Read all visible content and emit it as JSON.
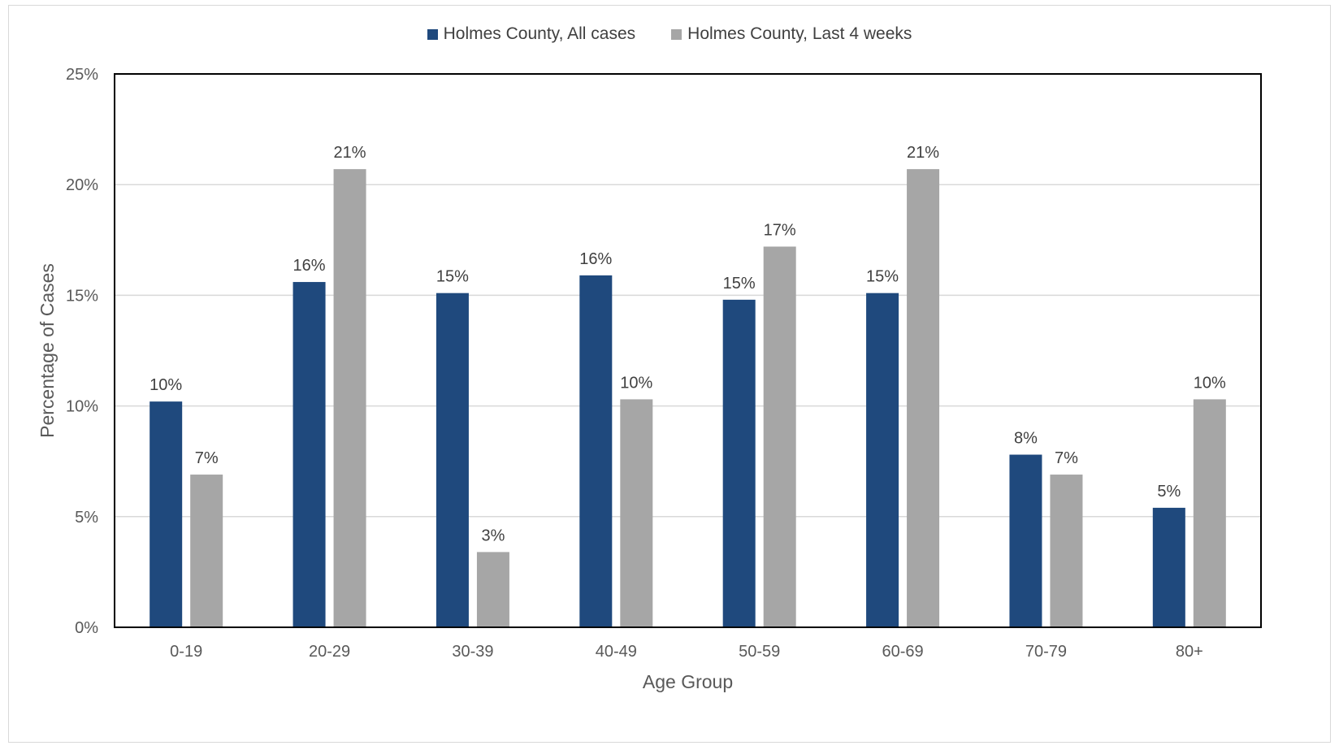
{
  "chart_data": {
    "type": "bar",
    "categories": [
      "0-19",
      "20-29",
      "30-39",
      "40-49",
      "50-59",
      "60-69",
      "70-79",
      "80+"
    ],
    "series": [
      {
        "name": "Holmes County, All cases",
        "color": "#1f497d",
        "values": [
          10.2,
          15.6,
          15.1,
          15.9,
          14.8,
          15.1,
          7.8,
          5.4
        ],
        "labels": [
          "10%",
          "16%",
          "15%",
          "16%",
          "15%",
          "15%",
          "8%",
          "5%"
        ]
      },
      {
        "name": "Holmes County, Last 4 weeks",
        "color": "#a6a6a6",
        "values": [
          6.9,
          20.7,
          3.4,
          10.3,
          17.2,
          20.7,
          6.9,
          10.3
        ],
        "labels": [
          "7%",
          "21%",
          "3%",
          "10%",
          "17%",
          "21%",
          "7%",
          "10%"
        ]
      }
    ],
    "xlabel": "Age Group",
    "ylabel": "Percentage of Cases",
    "ylim": [
      0,
      25
    ],
    "yticks": [
      0,
      5,
      10,
      15,
      20,
      25
    ],
    "ytick_labels": [
      "0%",
      "5%",
      "10%",
      "15%",
      "20%",
      "25%"
    ],
    "grid": true,
    "legend": "top-center"
  }
}
